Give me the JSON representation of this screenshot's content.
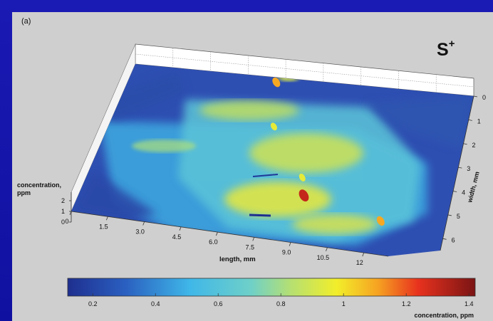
{
  "panel_label": "(a)",
  "species_label": "S",
  "species_charge": "+",
  "chart_data": {
    "type": "surface3d",
    "title": "",
    "xlabel": "length, mm",
    "ylabel": "width, mm",
    "zlabel_line1": "concentration,",
    "zlabel_line2": "ppm",
    "x_ticks": [
      "0",
      "1.5",
      "3.0",
      "4.5",
      "6.0",
      "7.5",
      "9.0",
      "10.5",
      "12"
    ],
    "y_ticks": [
      "0",
      "1",
      "2",
      "3",
      "4",
      "5",
      "6"
    ],
    "z_ticks": [
      "0",
      "1",
      "2"
    ],
    "xlim": [
      0,
      13
    ],
    "ylim": [
      0,
      6.5
    ],
    "zlim": [
      0,
      2
    ],
    "colorbar": {
      "label": "concentration, ppm",
      "ticks": [
        "0.2",
        "0.4",
        "0.6",
        "0.8",
        "1",
        "1.2",
        "1.4"
      ],
      "range": [
        0.12,
        1.42
      ],
      "colormap": "jet"
    },
    "hotspots": [
      {
        "length_mm": 8.6,
        "width_mm": 4.6,
        "concentration_ppm": 1.3
      },
      {
        "length_mm": 12.0,
        "width_mm": 5.2,
        "concentration_ppm": 1.1
      },
      {
        "length_mm": 5.5,
        "width_mm": 0.2,
        "concentration_ppm": 1.1
      },
      {
        "length_mm": 8.2,
        "width_mm": 3.9,
        "concentration_ppm": 0.95
      },
      {
        "length_mm": 6.2,
        "width_mm": 2.0,
        "concentration_ppm": 0.95
      }
    ]
  }
}
